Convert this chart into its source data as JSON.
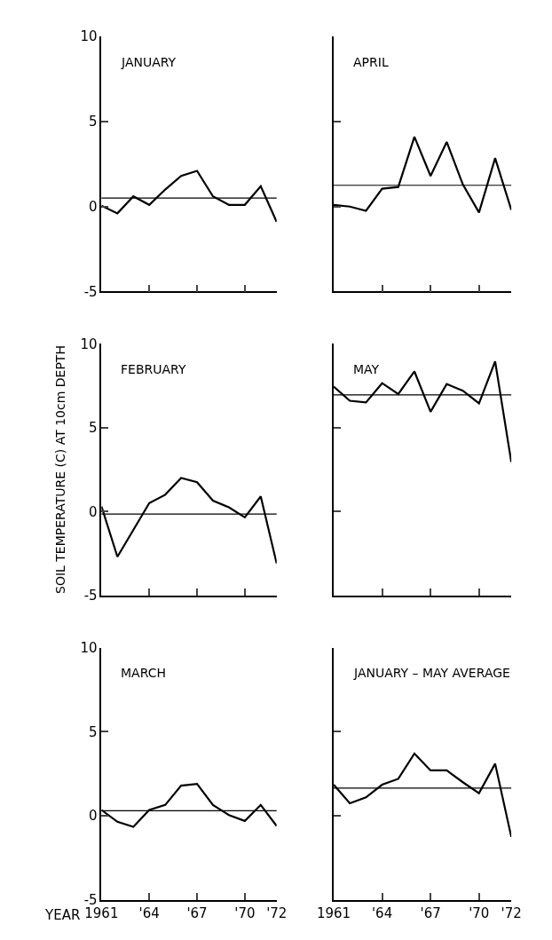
{
  "chart_data": [
    {
      "type": "line",
      "title": "JANUARY",
      "x": [
        1961,
        1962,
        1963,
        1964,
        1965,
        1966,
        1967,
        1968,
        1969,
        1970,
        1971,
        1972
      ],
      "series": [
        {
          "color": "#000000",
          "values": [
            0.05,
            -0.4,
            0.6,
            0.1,
            1.0,
            1.8,
            2.1,
            0.6,
            0.1,
            0.1,
            1.2,
            -0.9
          ]
        }
      ],
      "ref_lines": [
        {
          "axis": "y",
          "value": 0.5,
          "color": "#000000"
        }
      ],
      "xlim": [
        1961,
        1972
      ],
      "xticks": [
        {
          "value": 1964,
          "label": null
        },
        {
          "value": 1967,
          "label": null
        },
        {
          "value": 1970,
          "label": null
        },
        {
          "value": 1972,
          "label": null
        }
      ],
      "ylim": [
        -5,
        10
      ],
      "yticks": [
        -5,
        0,
        5,
        10
      ],
      "tick_labels": "y",
      "marker": "none",
      "line_style": "solid"
    },
    {
      "type": "line",
      "title": "APRIL",
      "x": [
        1961,
        1962,
        1963,
        1964,
        1965,
        1966,
        1967,
        1968,
        1969,
        1970,
        1971,
        1972
      ],
      "series": [
        {
          "color": "#000000",
          "values": [
            0.1,
            0.0,
            -0.25,
            1.05,
            1.15,
            4.1,
            1.8,
            3.8,
            1.3,
            -0.35,
            2.85,
            -0.2
          ]
        }
      ],
      "ref_lines": [
        {
          "axis": "y",
          "value": 1.25,
          "color": "#000000"
        }
      ],
      "xlim": [
        1961,
        1972
      ],
      "xticks": [
        {
          "value": 1964,
          "label": null
        },
        {
          "value": 1967,
          "label": null
        },
        {
          "value": 1970,
          "label": null
        },
        {
          "value": 1972,
          "label": null
        }
      ],
      "ylim": [
        -5,
        10
      ],
      "yticks": [
        {
          "value": 0,
          "label": null
        },
        {
          "value": 5,
          "label": null
        },
        {
          "value": 10,
          "label": null
        }
      ],
      "tick_labels": false,
      "marker": "none",
      "line_style": "solid"
    },
    {
      "type": "line",
      "title": "FEBRUARY",
      "ylabel": "SOIL TEMPERATURE (C) AT 10cm DEPTH",
      "x": [
        1961,
        1962,
        1963,
        1964,
        1965,
        1966,
        1967,
        1968,
        1969,
        1970,
        1971,
        1972
      ],
      "series": [
        {
          "color": "#000000",
          "values": [
            0.3,
            -2.7,
            -1.1,
            0.5,
            1.0,
            2.0,
            1.75,
            0.65,
            0.25,
            -0.35,
            0.9,
            -3.1
          ]
        }
      ],
      "ref_lines": [
        {
          "axis": "y",
          "value": -0.15,
          "color": "#000000"
        }
      ],
      "xlim": [
        1961,
        1972
      ],
      "xticks": [
        {
          "value": 1964,
          "label": null
        },
        {
          "value": 1967,
          "label": null
        },
        {
          "value": 1970,
          "label": null
        },
        {
          "value": 1972,
          "label": null
        }
      ],
      "ylim": [
        -5,
        10
      ],
      "yticks": [
        -5,
        0,
        5,
        10
      ],
      "tick_labels": "y",
      "marker": "none",
      "line_style": "solid"
    },
    {
      "type": "line",
      "title": "MAY",
      "x": [
        1961,
        1962,
        1963,
        1964,
        1965,
        1966,
        1967,
        1968,
        1969,
        1970,
        1971,
        1972
      ],
      "series": [
        {
          "color": "#000000",
          "values": [
            7.45,
            6.6,
            6.5,
            7.65,
            7.0,
            8.35,
            5.95,
            7.6,
            7.2,
            6.45,
            8.95,
            2.95
          ]
        }
      ],
      "ref_lines": [
        {
          "axis": "y",
          "value": 6.95,
          "color": "#000000"
        }
      ],
      "xlim": [
        1961,
        1972
      ],
      "xticks": [
        {
          "value": 1964,
          "label": null
        },
        {
          "value": 1967,
          "label": null
        },
        {
          "value": 1970,
          "label": null
        },
        {
          "value": 1972,
          "label": null
        }
      ],
      "ylim": [
        -5,
        10
      ],
      "yticks": [
        {
          "value": 0,
          "label": null
        },
        {
          "value": 5,
          "label": null
        },
        {
          "value": 10,
          "label": null
        }
      ],
      "tick_labels": false,
      "marker": "none",
      "line_style": "solid"
    },
    {
      "type": "line",
      "title": "MARCH",
      "xlabel": "YEAR",
      "x": [
        1961,
        1962,
        1963,
        1964,
        1965,
        1966,
        1967,
        1968,
        1969,
        1970,
        1971,
        1972
      ],
      "series": [
        {
          "color": "#000000",
          "values": [
            0.35,
            -0.35,
            -0.65,
            0.35,
            0.65,
            1.8,
            1.9,
            0.65,
            0.05,
            -0.3,
            0.65,
            -0.6
          ]
        }
      ],
      "ref_lines": [
        {
          "axis": "y",
          "value": 0.3,
          "color": "#000000"
        }
      ],
      "xlim": [
        1961,
        1972
      ],
      "xticks": [
        1961,
        {
          "value": 1964,
          "label": "'64"
        },
        {
          "value": 1967,
          "label": "'67"
        },
        {
          "value": 1970,
          "label": "'70"
        },
        {
          "value": 1972,
          "label": "'72"
        }
      ],
      "ylim": [
        -5,
        10
      ],
      "yticks": [
        -5,
        0,
        5,
        10
      ],
      "marker": "none",
      "line_style": "solid"
    },
    {
      "type": "line",
      "title": "JANUARY – MAY AVERAGE",
      "x": [
        1961,
        1962,
        1963,
        1964,
        1965,
        1966,
        1967,
        1968,
        1969,
        1970,
        1971,
        1972
      ],
      "series": [
        {
          "color": "#000000",
          "values": [
            1.85,
            0.75,
            1.1,
            1.85,
            2.2,
            3.7,
            2.7,
            2.7,
            2.0,
            1.35,
            3.1,
            -1.25
          ]
        }
      ],
      "ref_lines": [
        {
          "axis": "y",
          "value": 1.65,
          "color": "#000000"
        }
      ],
      "xlim": [
        1961,
        1972
      ],
      "xticks": [
        1961,
        {
          "value": 1964,
          "label": "'64"
        },
        {
          "value": 1967,
          "label": "'67"
        },
        {
          "value": 1970,
          "label": "'70"
        },
        {
          "value": 1972,
          "label": "'72"
        }
      ],
      "ylim": [
        -5,
        10
      ],
      "yticks": [
        {
          "value": 0,
          "label": null
        },
        {
          "value": 5,
          "label": null
        },
        {
          "value": 10,
          "label": null
        }
      ],
      "tick_labels": "x",
      "marker": "none",
      "line_style": "solid"
    }
  ]
}
